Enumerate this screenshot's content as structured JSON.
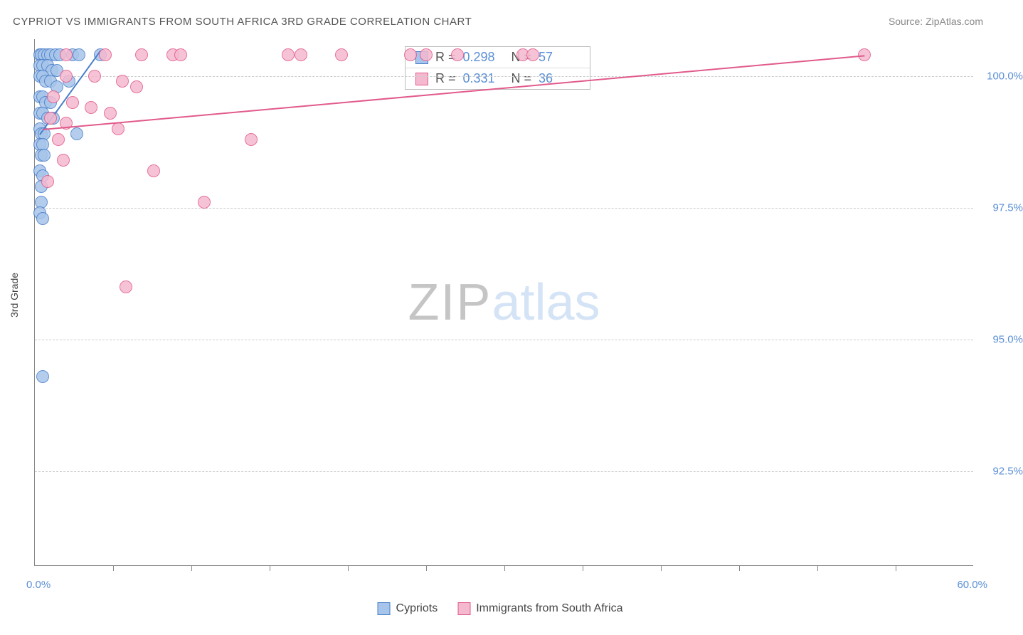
{
  "title": "CYPRIOT VS IMMIGRANTS FROM SOUTH AFRICA 3RD GRADE CORRELATION CHART",
  "source_prefix": "Source: ",
  "source_name": "ZipAtlas.com",
  "y_axis_label": "3rd Grade",
  "watermark_a": "ZIP",
  "watermark_b": "atlas",
  "chart": {
    "type": "scatter",
    "xlim": [
      0,
      60
    ],
    "ylim": [
      90.7,
      100.7
    ],
    "x_min_label": "0.0%",
    "x_max_label": "60.0%",
    "x_tick_positions": [
      5,
      10,
      15,
      20,
      25,
      30,
      35,
      40,
      45,
      50,
      55
    ],
    "y_gridlines": [
      92.5,
      95.0,
      97.5,
      100.0
    ],
    "y_tick_labels": [
      "92.5%",
      "95.0%",
      "97.5%",
      "100.0%"
    ],
    "grid_color": "#cccccc",
    "axis_color": "#888888",
    "background_color": "#ffffff",
    "marker_radius": 9,
    "marker_stroke_width": 1.5,
    "marker_fill_opacity": 0.25,
    "series": [
      {
        "name": "Cypriots",
        "color_stroke": "#4a7fc9",
        "color_fill": "#a7c5ea",
        "stats": {
          "R": "0.298",
          "N": "57"
        },
        "trend": {
          "x1": 0.3,
          "y1": 98.9,
          "x2": 4.2,
          "y2": 100.5,
          "width": 2
        },
        "points": [
          [
            0.3,
            100.4
          ],
          [
            0.4,
            100.4
          ],
          [
            0.6,
            100.4
          ],
          [
            0.8,
            100.4
          ],
          [
            1.0,
            100.4
          ],
          [
            1.3,
            100.4
          ],
          [
            1.6,
            100.4
          ],
          [
            2.4,
            100.4
          ],
          [
            2.8,
            100.4
          ],
          [
            4.2,
            100.4
          ],
          [
            0.3,
            100.2
          ],
          [
            0.5,
            100.2
          ],
          [
            0.8,
            100.2
          ],
          [
            1.1,
            100.1
          ],
          [
            1.4,
            100.1
          ],
          [
            0.3,
            100.0
          ],
          [
            0.5,
            100.0
          ],
          [
            0.7,
            99.9
          ],
          [
            1.0,
            99.9
          ],
          [
            1.4,
            99.8
          ],
          [
            2.2,
            99.9
          ],
          [
            0.3,
            99.6
          ],
          [
            0.5,
            99.6
          ],
          [
            0.7,
            99.5
          ],
          [
            1.0,
            99.5
          ],
          [
            0.3,
            99.3
          ],
          [
            0.5,
            99.3
          ],
          [
            0.8,
            99.2
          ],
          [
            1.2,
            99.2
          ],
          [
            0.3,
            99.0
          ],
          [
            0.4,
            98.9
          ],
          [
            0.6,
            98.9
          ],
          [
            2.7,
            98.9
          ],
          [
            0.3,
            98.7
          ],
          [
            0.5,
            98.7
          ],
          [
            0.4,
            98.5
          ],
          [
            0.6,
            98.5
          ],
          [
            0.3,
            98.2
          ],
          [
            0.5,
            98.1
          ],
          [
            0.4,
            97.9
          ],
          [
            0.4,
            97.6
          ],
          [
            0.3,
            97.4
          ],
          [
            0.5,
            97.3
          ],
          [
            0.5,
            94.3
          ]
        ]
      },
      {
        "name": "Immigrants from South Africa",
        "color_stroke": "#e15a8b",
        "color_fill": "#f5b9cf",
        "stats": {
          "R": "0.331",
          "N": "36"
        },
        "trend": {
          "x1": 0.5,
          "y1": 99.0,
          "x2": 53.0,
          "y2": 100.4,
          "width": 2
        },
        "points": [
          [
            2.0,
            100.4
          ],
          [
            4.5,
            100.4
          ],
          [
            6.8,
            100.4
          ],
          [
            8.8,
            100.4
          ],
          [
            9.3,
            100.4
          ],
          [
            16.2,
            100.4
          ],
          [
            17.0,
            100.4
          ],
          [
            19.6,
            100.4
          ],
          [
            24.0,
            100.4
          ],
          [
            25.0,
            100.4
          ],
          [
            27.0,
            100.4
          ],
          [
            31.2,
            100.4
          ],
          [
            31.8,
            100.4
          ],
          [
            53.0,
            100.4
          ],
          [
            2.0,
            100.0
          ],
          [
            3.8,
            100.0
          ],
          [
            5.6,
            99.9
          ],
          [
            6.5,
            99.8
          ],
          [
            1.2,
            99.6
          ],
          [
            2.4,
            99.5
          ],
          [
            3.6,
            99.4
          ],
          [
            4.8,
            99.3
          ],
          [
            1.0,
            99.2
          ],
          [
            2.0,
            99.1
          ],
          [
            5.3,
            99.0
          ],
          [
            1.5,
            98.8
          ],
          [
            13.8,
            98.8
          ],
          [
            1.8,
            98.4
          ],
          [
            7.6,
            98.2
          ],
          [
            0.8,
            98.0
          ],
          [
            10.8,
            97.6
          ],
          [
            5.8,
            96.0
          ]
        ]
      }
    ]
  },
  "stats_box": {
    "r_label": "R =",
    "n_label": "N ="
  },
  "legend": {
    "items": [
      "Cypriots",
      "Immigrants from South Africa"
    ]
  }
}
